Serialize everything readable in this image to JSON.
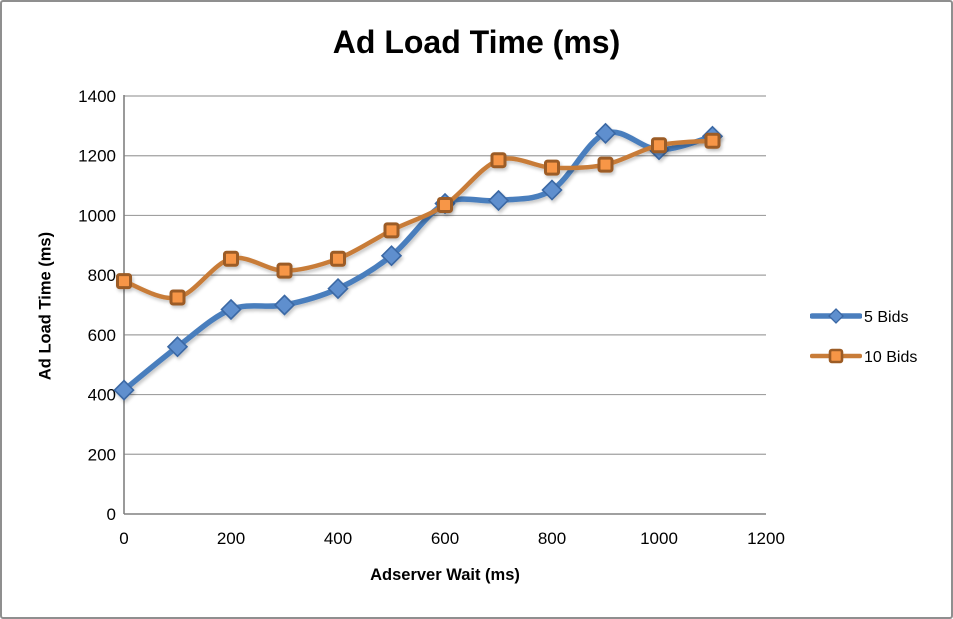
{
  "frame": {
    "background": "#FFFFFF",
    "border_color": "#8F8F8F",
    "gridline_color": "#A0A0A0",
    "axis_color": "#808080"
  },
  "chart_data": {
    "type": "line",
    "title": "Ad Load Time (ms)",
    "xlabel": "Adserver Wait (ms)",
    "ylabel": "Ad Load Time (ms)",
    "x": [
      0,
      100,
      200,
      300,
      400,
      500,
      600,
      700,
      800,
      900,
      1000,
      1100
    ],
    "xlim": [
      0,
      1200
    ],
    "ylim": [
      0,
      1400
    ],
    "xticks": [
      0,
      200,
      400,
      600,
      800,
      1000,
      1200
    ],
    "yticks": [
      0,
      200,
      400,
      600,
      800,
      1000,
      1200,
      1400
    ],
    "grid": "horizontal",
    "smooth_lines": true,
    "legend_position": "right",
    "series": [
      {
        "name": "5 Bids",
        "marker": "diamond",
        "line_color": "#4A7EBD",
        "marker_fill": "#5E8FCE",
        "marker_stroke": "#3A67A4",
        "line_width": 5.5,
        "values": [
          415,
          560,
          685,
          700,
          755,
          865,
          1040,
          1050,
          1085,
          1275,
          1220,
          1265
        ]
      },
      {
        "name": "10 Bids",
        "marker": "square",
        "line_color": "#C87C38",
        "marker_fill": "#F79646",
        "marker_stroke": "#9C5C25",
        "line_width": 4.5,
        "values": [
          780,
          725,
          855,
          815,
          855,
          950,
          1035,
          1185,
          1160,
          1170,
          1235,
          1250
        ]
      }
    ]
  }
}
